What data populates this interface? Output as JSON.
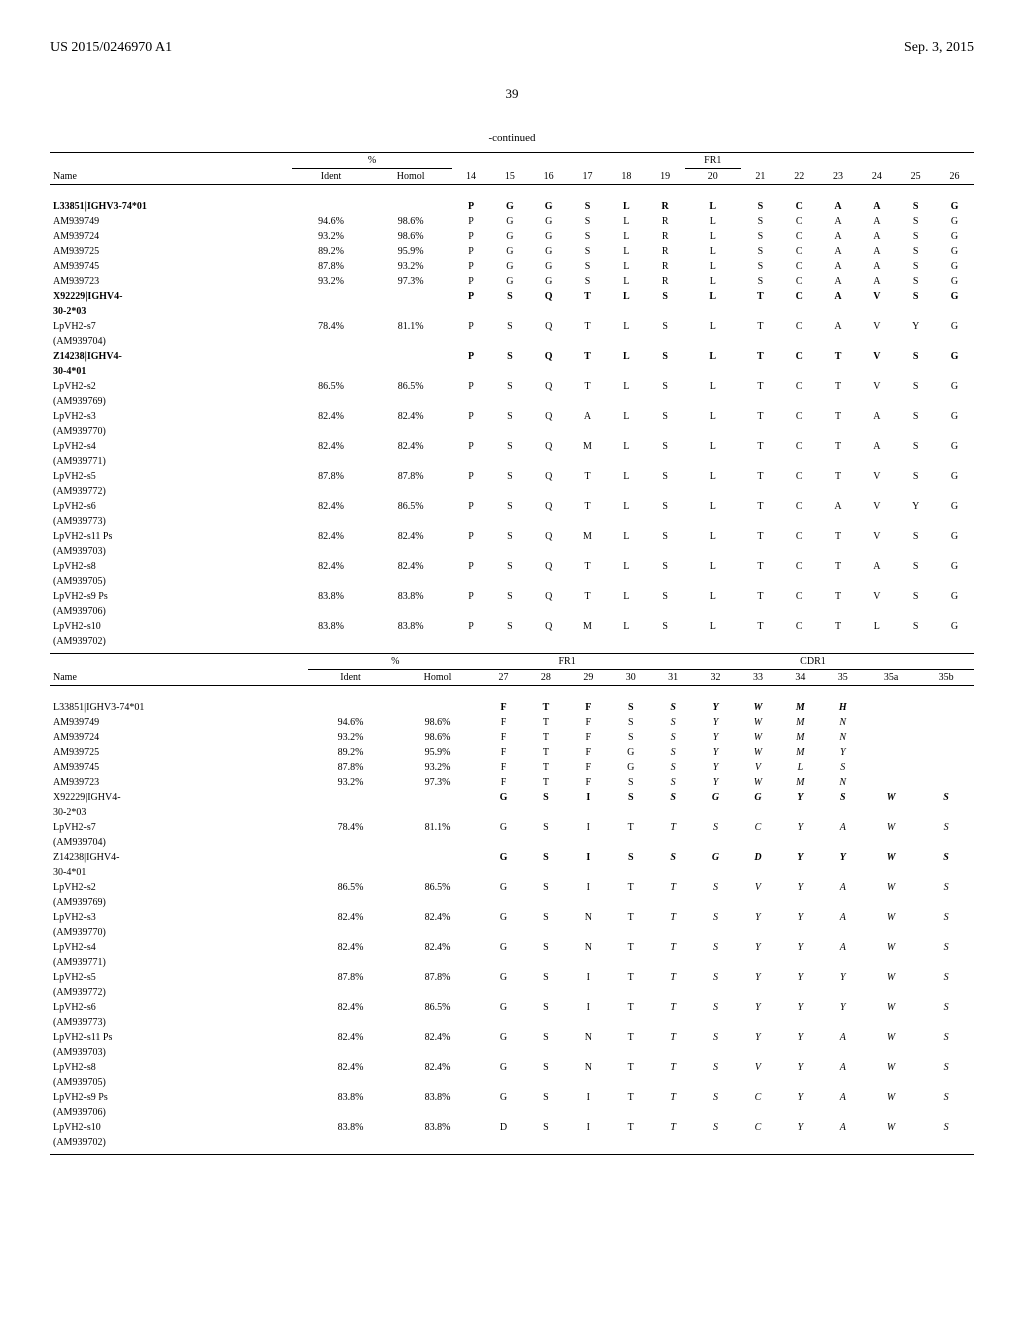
{
  "header": {
    "left": "US 2015/0246970 A1",
    "right": "Sep. 3, 2015"
  },
  "page_number": "39",
  "continued_label": "-continued",
  "table1": {
    "group_labels": {
      "pct": "%",
      "fr1": "FR1"
    },
    "col_headers": [
      "Name",
      "Ident",
      "Homol",
      "14",
      "15",
      "16",
      "17",
      "18",
      "19",
      "20",
      "21",
      "22",
      "23",
      "24",
      "25",
      "26"
    ],
    "rows": [
      {
        "name": "L33851|IGHV3-74*01",
        "ident": "",
        "homol": "",
        "seq": [
          "P",
          "G",
          "G",
          "S",
          "L",
          "R",
          "L",
          "S",
          "C",
          "A",
          "A",
          "S",
          "G"
        ],
        "bold": true
      },
      {
        "name": "AM939749",
        "ident": "94.6%",
        "homol": "98.6%",
        "seq": [
          "P",
          "G",
          "G",
          "S",
          "L",
          "R",
          "L",
          "S",
          "C",
          "A",
          "A",
          "S",
          "G"
        ]
      },
      {
        "name": "AM939724",
        "ident": "93.2%",
        "homol": "98.6%",
        "seq": [
          "P",
          "G",
          "G",
          "S",
          "L",
          "R",
          "L",
          "S",
          "C",
          "A",
          "A",
          "S",
          "G"
        ]
      },
      {
        "name": "AM939725",
        "ident": "89.2%",
        "homol": "95.9%",
        "seq": [
          "P",
          "G",
          "G",
          "S",
          "L",
          "R",
          "L",
          "S",
          "C",
          "A",
          "A",
          "S",
          "G"
        ]
      },
      {
        "name": "AM939745",
        "ident": "87.8%",
        "homol": "93.2%",
        "seq": [
          "P",
          "G",
          "G",
          "S",
          "L",
          "R",
          "L",
          "S",
          "C",
          "A",
          "A",
          "S",
          "G"
        ]
      },
      {
        "name": "AM939723",
        "ident": "93.2%",
        "homol": "97.3%",
        "seq": [
          "P",
          "G",
          "G",
          "S",
          "L",
          "R",
          "L",
          "S",
          "C",
          "A",
          "A",
          "S",
          "G"
        ]
      },
      {
        "name": "X92229|IGHV4-30-2*03",
        "ident": "",
        "homol": "",
        "seq": [
          "P",
          "S",
          "Q",
          "T",
          "L",
          "S",
          "L",
          "T",
          "C",
          "A",
          "V",
          "S",
          "G"
        ],
        "bold": true
      },
      {
        "name": "LpVH2-s7 (AM939704)",
        "ident": "78.4%",
        "homol": "81.1%",
        "seq": [
          "P",
          "S",
          "Q",
          "T",
          "L",
          "S",
          "L",
          "T",
          "C",
          "A",
          "V",
          "Y",
          "G"
        ]
      },
      {
        "name": "Z14238|IGHV4-30-4*01",
        "ident": "",
        "homol": "",
        "seq": [
          "P",
          "S",
          "Q",
          "T",
          "L",
          "S",
          "L",
          "T",
          "C",
          "T",
          "V",
          "S",
          "G"
        ],
        "bold": true
      },
      {
        "name": "LpVH2-s2 (AM939769)",
        "ident": "86.5%",
        "homol": "86.5%",
        "seq": [
          "P",
          "S",
          "Q",
          "T",
          "L",
          "S",
          "L",
          "T",
          "C",
          "T",
          "V",
          "S",
          "G"
        ]
      },
      {
        "name": "LpVH2-s3 (AM939770)",
        "ident": "82.4%",
        "homol": "82.4%",
        "seq": [
          "P",
          "S",
          "Q",
          "A",
          "L",
          "S",
          "L",
          "T",
          "C",
          "T",
          "A",
          "S",
          "G"
        ]
      },
      {
        "name": "LpVH2-s4 (AM939771)",
        "ident": "82.4%",
        "homol": "82.4%",
        "seq": [
          "P",
          "S",
          "Q",
          "M",
          "L",
          "S",
          "L",
          "T",
          "C",
          "T",
          "A",
          "S",
          "G"
        ]
      },
      {
        "name": "LpVH2-s5 (AM939772)",
        "ident": "87.8%",
        "homol": "87.8%",
        "seq": [
          "P",
          "S",
          "Q",
          "T",
          "L",
          "S",
          "L",
          "T",
          "C",
          "T",
          "V",
          "S",
          "G"
        ]
      },
      {
        "name": "LpVH2-s6 (AM939773)",
        "ident": "82.4%",
        "homol": "86.5%",
        "seq": [
          "P",
          "S",
          "Q",
          "T",
          "L",
          "S",
          "L",
          "T",
          "C",
          "A",
          "V",
          "Y",
          "G"
        ]
      },
      {
        "name": "LpVH2-s11 Ps (AM939703)",
        "ident": "82.4%",
        "homol": "82.4%",
        "seq": [
          "P",
          "S",
          "Q",
          "M",
          "L",
          "S",
          "L",
          "T",
          "C",
          "T",
          "V",
          "S",
          "G"
        ]
      },
      {
        "name": "LpVH2-s8 (AM939705)",
        "ident": "82.4%",
        "homol": "82.4%",
        "seq": [
          "P",
          "S",
          "Q",
          "T",
          "L",
          "S",
          "L",
          "T",
          "C",
          "T",
          "A",
          "S",
          "G"
        ]
      },
      {
        "name": "LpVH2-s9 Ps (AM939706)",
        "ident": "83.8%",
        "homol": "83.8%",
        "seq": [
          "P",
          "S",
          "Q",
          "T",
          "L",
          "S",
          "L",
          "T",
          "C",
          "T",
          "V",
          "S",
          "G"
        ]
      },
      {
        "name": "LpVH2-s10 (AM939702)",
        "ident": "83.8%",
        "homol": "83.8%",
        "seq": [
          "P",
          "S",
          "Q",
          "M",
          "L",
          "S",
          "L",
          "T",
          "C",
          "T",
          "L",
          "S",
          "G"
        ]
      }
    ]
  },
  "table2": {
    "group_labels": {
      "pct": "%",
      "fr1": "FR1",
      "cdr1": "CDR1"
    },
    "col_headers": [
      "Name",
      "Ident",
      "Homol",
      "27",
      "28",
      "29",
      "30",
      "31",
      "32",
      "33",
      "34",
      "35",
      "35a",
      "35b"
    ],
    "rows": [
      {
        "name": "L33851|IGHV3-74*01",
        "ident": "",
        "homol": "",
        "fr1": [
          "F",
          "T",
          "F",
          "S"
        ],
        "cdr1": [
          "S",
          "Y",
          "W",
          "M",
          "H",
          "",
          ""
        ],
        "bold": true
      },
      {
        "name": "AM939749",
        "ident": "94.6%",
        "homol": "98.6%",
        "fr1": [
          "F",
          "T",
          "F",
          "S"
        ],
        "cdr1": [
          "S",
          "Y",
          "W",
          "M",
          "N",
          "",
          ""
        ],
        "italic": true
      },
      {
        "name": "AM939724",
        "ident": "93.2%",
        "homol": "98.6%",
        "fr1": [
          "F",
          "T",
          "F",
          "S"
        ],
        "cdr1": [
          "S",
          "Y",
          "W",
          "M",
          "N",
          "",
          ""
        ],
        "italic": true
      },
      {
        "name": "AM939725",
        "ident": "89.2%",
        "homol": "95.9%",
        "fr1": [
          "F",
          "T",
          "F",
          "G"
        ],
        "cdr1": [
          "S",
          "Y",
          "W",
          "M",
          "Y",
          "",
          ""
        ],
        "italic": true
      },
      {
        "name": "AM939745",
        "ident": "87.8%",
        "homol": "93.2%",
        "fr1": [
          "F",
          "T",
          "F",
          "G"
        ],
        "cdr1": [
          "S",
          "Y",
          "V",
          "L",
          "S",
          "",
          ""
        ],
        "italic": true
      },
      {
        "name": "AM939723",
        "ident": "93.2%",
        "homol": "97.3%",
        "fr1": [
          "F",
          "T",
          "F",
          "S"
        ],
        "cdr1": [
          "S",
          "Y",
          "W",
          "M",
          "N",
          "",
          ""
        ],
        "italic": true
      },
      {
        "name": "X92229|IGHV4-30-2*03",
        "ident": "",
        "homol": "",
        "fr1": [
          "G",
          "S",
          "I",
          "S"
        ],
        "cdr1": [
          "S",
          "G",
          "G",
          "Y",
          "S",
          "W",
          "S"
        ],
        "bold": true
      },
      {
        "name": "LpVH2-s7 (AM939704)",
        "ident": "78.4%",
        "homol": "81.1%",
        "fr1": [
          "G",
          "S",
          "I",
          "T"
        ],
        "cdr1": [
          "T",
          "S",
          "C",
          "Y",
          "A",
          "W",
          "S"
        ],
        "italic": true
      },
      {
        "name": "Z14238|IGHV4-30-4*01",
        "ident": "",
        "homol": "",
        "fr1": [
          "G",
          "S",
          "I",
          "S"
        ],
        "cdr1": [
          "S",
          "G",
          "D",
          "Y",
          "Y",
          "W",
          "S"
        ],
        "bold": true
      },
      {
        "name": "LpVH2-s2 (AM939769)",
        "ident": "86.5%",
        "homol": "86.5%",
        "fr1": [
          "G",
          "S",
          "I",
          "T"
        ],
        "cdr1": [
          "T",
          "S",
          "V",
          "Y",
          "A",
          "W",
          "S"
        ],
        "italic": true
      },
      {
        "name": "LpVH2-s3 (AM939770)",
        "ident": "82.4%",
        "homol": "82.4%",
        "fr1": [
          "G",
          "S",
          "N",
          "T"
        ],
        "cdr1": [
          "T",
          "S",
          "Y",
          "Y",
          "A",
          "W",
          "S"
        ],
        "italic": true
      },
      {
        "name": "LpVH2-s4 (AM939771)",
        "ident": "82.4%",
        "homol": "82.4%",
        "fr1": [
          "G",
          "S",
          "N",
          "T"
        ],
        "cdr1": [
          "T",
          "S",
          "Y",
          "Y",
          "A",
          "W",
          "S"
        ],
        "italic": true
      },
      {
        "name": "LpVH2-s5 (AM939772)",
        "ident": "87.8%",
        "homol": "87.8%",
        "fr1": [
          "G",
          "S",
          "I",
          "T"
        ],
        "cdr1": [
          "T",
          "S",
          "Y",
          "Y",
          "Y",
          "W",
          "S"
        ],
        "italic": true
      },
      {
        "name": "LpVH2-s6 (AM939773)",
        "ident": "82.4%",
        "homol": "86.5%",
        "fr1": [
          "G",
          "S",
          "I",
          "T"
        ],
        "cdr1": [
          "T",
          "S",
          "Y",
          "Y",
          "Y",
          "W",
          "S"
        ],
        "italic": true
      },
      {
        "name": "LpVH2-s11 Ps (AM939703)",
        "ident": "82.4%",
        "homol": "82.4%",
        "fr1": [
          "G",
          "S",
          "N",
          "T"
        ],
        "cdr1": [
          "T",
          "S",
          "Y",
          "Y",
          "A",
          "W",
          "S"
        ],
        "italic": true
      },
      {
        "name": "LpVH2-s8 (AM939705)",
        "ident": "82.4%",
        "homol": "82.4%",
        "fr1": [
          "G",
          "S",
          "N",
          "T"
        ],
        "cdr1": [
          "T",
          "S",
          "V",
          "Y",
          "A",
          "W",
          "S"
        ],
        "italic": true
      },
      {
        "name": "LpVH2-s9 Ps (AM939706)",
        "ident": "83.8%",
        "homol": "83.8%",
        "fr1": [
          "G",
          "S",
          "I",
          "T"
        ],
        "cdr1": [
          "T",
          "S",
          "C",
          "Y",
          "A",
          "W",
          "S"
        ],
        "italic": true
      },
      {
        "name": "LpVH2-s10 (AM939702)",
        "ident": "83.8%",
        "homol": "83.8%",
        "fr1": [
          "D",
          "S",
          "I",
          "T"
        ],
        "cdr1": [
          "T",
          "S",
          "C",
          "Y",
          "A",
          "W",
          "S"
        ],
        "italic": true
      }
    ]
  }
}
